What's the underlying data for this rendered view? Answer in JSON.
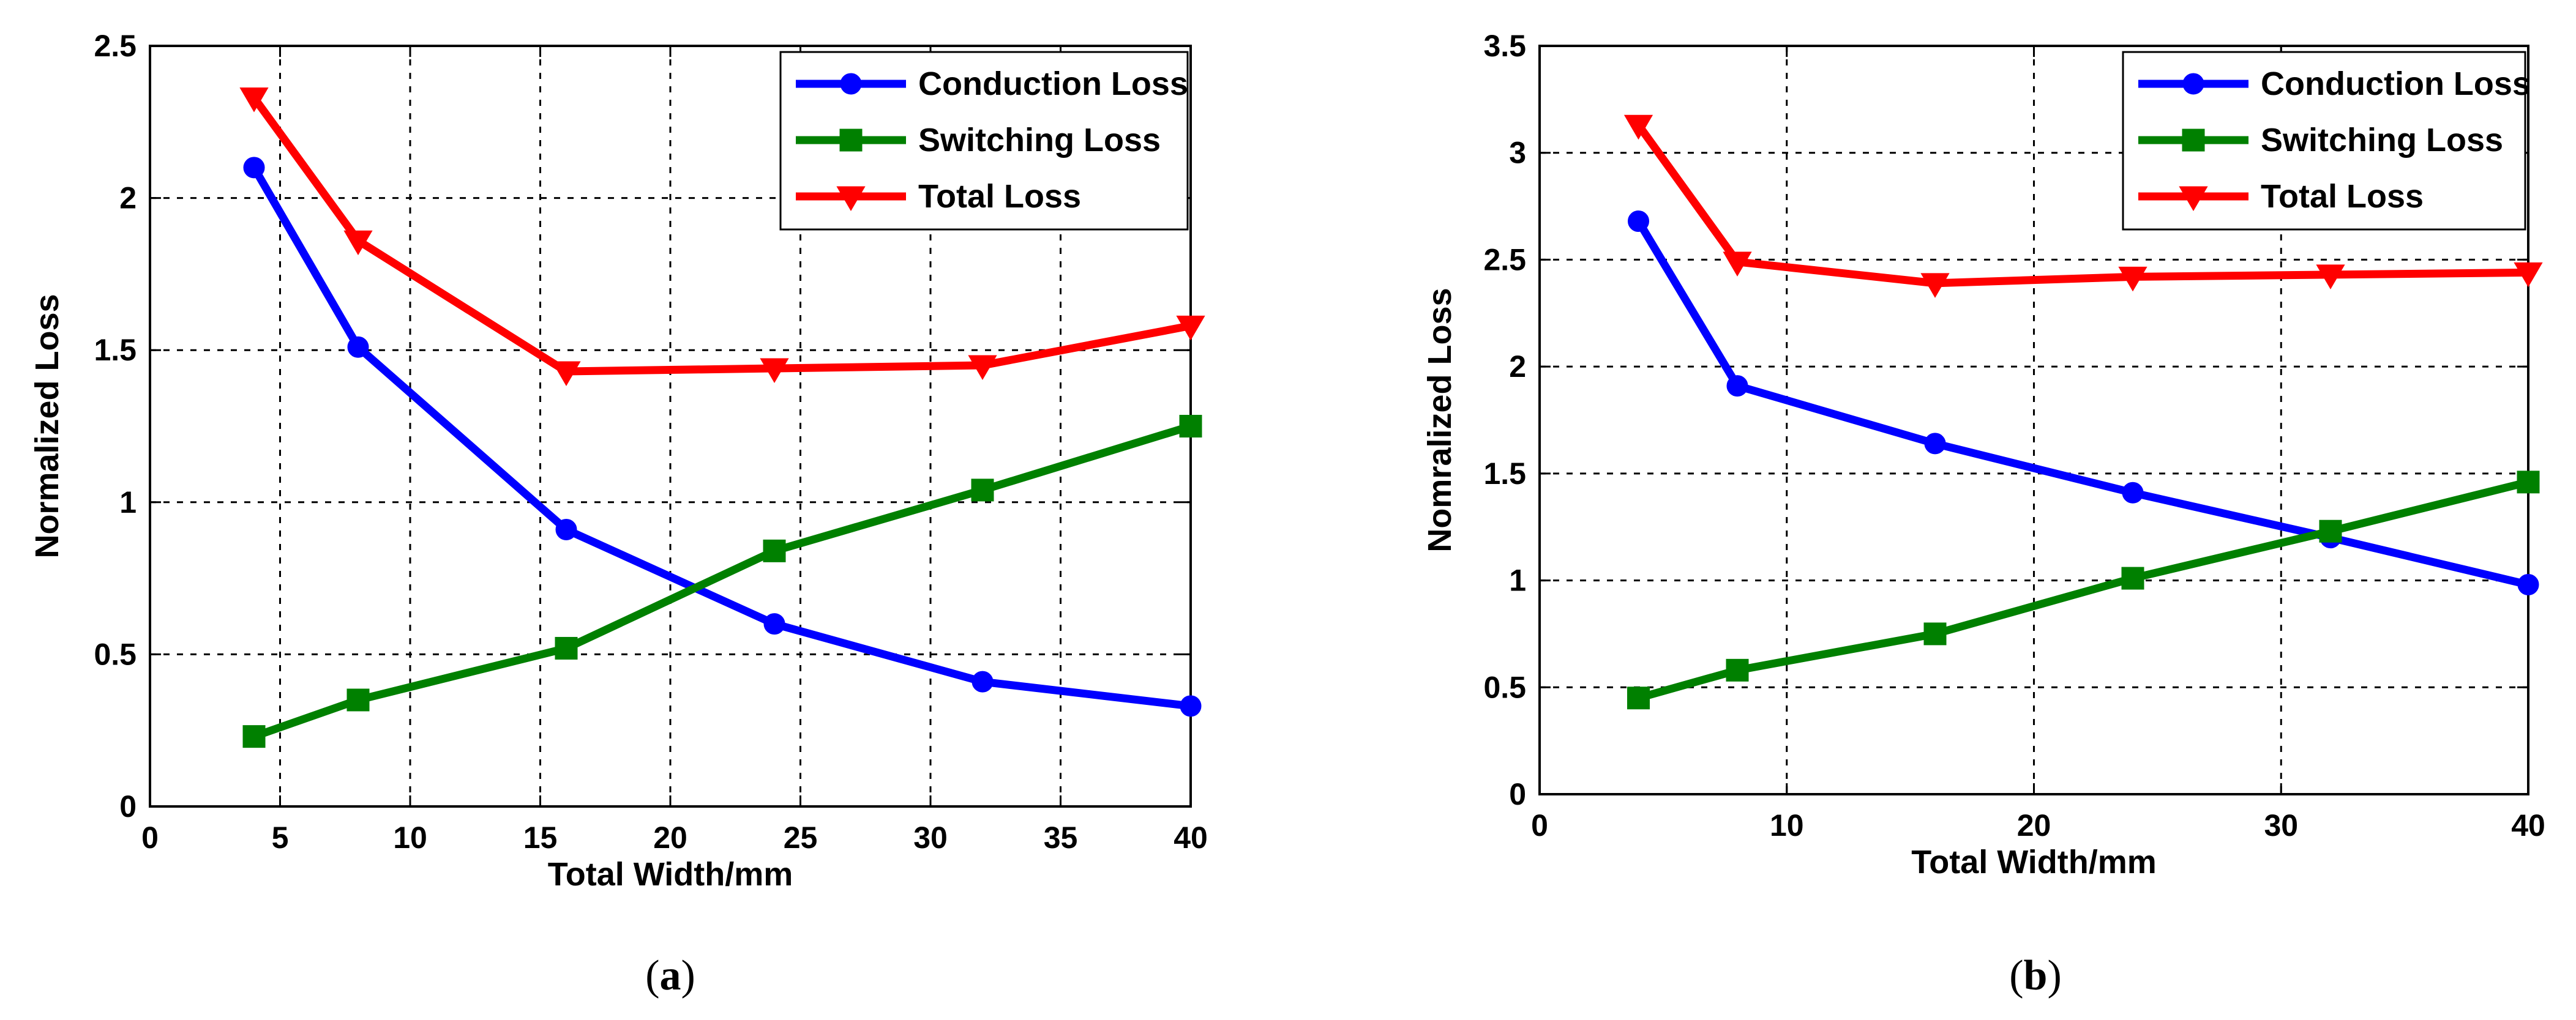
{
  "chart_data": [
    {
      "type": "line",
      "caption_letter": "a",
      "title": "",
      "xlabel": "Total Width/mm",
      "ylabel": "Normalized Loss",
      "xlim": [
        0,
        40
      ],
      "ylim": [
        0,
        2.5
      ],
      "xticks": [
        0,
        5,
        10,
        15,
        20,
        25,
        30,
        35,
        40
      ],
      "yticks": [
        0,
        0.5,
        1,
        1.5,
        2,
        2.5
      ],
      "xtick_labels": [
        "0",
        "5",
        "10",
        "15",
        "20",
        "25",
        "30",
        "35",
        "40"
      ],
      "ytick_labels": [
        "0",
        "0.5",
        "1",
        "1.5",
        "2",
        "2.5"
      ],
      "grid": true,
      "legend_position": "top-right",
      "x": [
        4,
        8,
        16,
        24,
        32,
        40
      ],
      "series": [
        {
          "name": "Conduction Loss",
          "color": "#0000ff",
          "marker": "circle",
          "values": [
            2.1,
            1.51,
            0.91,
            0.6,
            0.41,
            0.33
          ]
        },
        {
          "name": "Switching Loss",
          "color": "#008000",
          "marker": "square",
          "values": [
            0.23,
            0.35,
            0.52,
            0.84,
            1.04,
            1.25
          ]
        },
        {
          "name": "Total Loss",
          "color": "#ff0000",
          "marker": "triangle-down",
          "values": [
            2.33,
            1.86,
            1.43,
            1.44,
            1.45,
            1.58
          ]
        }
      ]
    },
    {
      "type": "line",
      "caption_letter": "b",
      "title": "",
      "xlabel": "Total Width/mm",
      "ylabel": "Nomralized Loss",
      "xlim": [
        0,
        40
      ],
      "ylim": [
        0,
        3.5
      ],
      "xticks": [
        0,
        10,
        20,
        30,
        40
      ],
      "yticks": [
        0,
        0.5,
        1,
        1.5,
        2,
        2.5,
        3,
        3.5
      ],
      "xtick_labels": [
        "0",
        "10",
        "20",
        "30",
        "40"
      ],
      "ytick_labels": [
        "0",
        "0.5",
        "1",
        "1.5",
        "2",
        "2.5",
        "3",
        "3.5"
      ],
      "grid": true,
      "legend_position": "top-right",
      "x": [
        4,
        8,
        16,
        24,
        32,
        40
      ],
      "series": [
        {
          "name": "Conduction Loss",
          "color": "#0000ff",
          "marker": "circle",
          "values": [
            2.68,
            1.91,
            1.64,
            1.41,
            1.2,
            0.98
          ]
        },
        {
          "name": "Switching Loss",
          "color": "#008000",
          "marker": "square",
          "values": [
            0.45,
            0.58,
            0.75,
            1.01,
            1.23,
            1.46
          ]
        },
        {
          "name": "Total Loss",
          "color": "#ff0000",
          "marker": "triangle-down",
          "values": [
            3.13,
            2.49,
            2.39,
            2.42,
            2.43,
            2.44
          ]
        }
      ]
    }
  ]
}
